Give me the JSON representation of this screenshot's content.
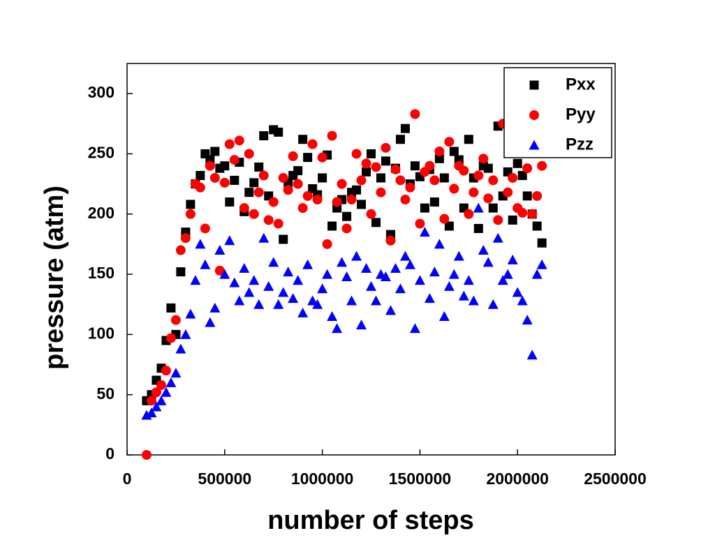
{
  "chart_data": {
    "type": "scatter",
    "xlabel": "number of steps",
    "ylabel": "pressure (atm)",
    "xlim": [
      0,
      2500000
    ],
    "ylim": [
      0,
      325
    ],
    "xticks": [
      0,
      500000,
      1000000,
      1500000,
      2000000,
      2500000
    ],
    "yticks": [
      0,
      50,
      100,
      150,
      200,
      250,
      300
    ],
    "legend": "upper right",
    "x": [
      100000,
      125000,
      150000,
      175000,
      200000,
      225000,
      250000,
      275000,
      300000,
      325000,
      350000,
      375000,
      400000,
      425000,
      450000,
      475000,
      500000,
      525000,
      550000,
      575000,
      600000,
      625000,
      650000,
      675000,
      700000,
      725000,
      750000,
      775000,
      800000,
      825000,
      850000,
      875000,
      900000,
      925000,
      950000,
      975000,
      1000000,
      1025000,
      1050000,
      1075000,
      1100000,
      1125000,
      1150000,
      1175000,
      1200000,
      1225000,
      1250000,
      1275000,
      1300000,
      1325000,
      1350000,
      1375000,
      1400000,
      1425000,
      1450000,
      1475000,
      1500000,
      1525000,
      1550000,
      1575000,
      1600000,
      1625000,
      1650000,
      1675000,
      1700000,
      1725000,
      1750000,
      1775000,
      1800000,
      1825000,
      1850000,
      1875000,
      1900000,
      1925000,
      1950000,
      1975000,
      2000000,
      2025000,
      2050000,
      2075000,
      2100000,
      2125000
    ],
    "series": [
      {
        "name": "Pxx",
        "color": "#000000",
        "marker": "square",
        "values": [
          45,
          50,
          62,
          72,
          95,
          122,
          100,
          152,
          185,
          208,
          225,
          232,
          250,
          245,
          252,
          238,
          240,
          210,
          228,
          243,
          202,
          218,
          226,
          239,
          265,
          215,
          270,
          268,
          179,
          226,
          232,
          236,
          262,
          247,
          221,
          216,
          230,
          249,
          190,
          205,
          212,
          198,
          218,
          220,
          208,
          235,
          250,
          193,
          230,
          244,
          183,
          238,
          262,
          271,
          225,
          240,
          231,
          205,
          237,
          210,
          246,
          230,
          190,
          252,
          245,
          205,
          262,
          230,
          188,
          240,
          238,
          205,
          273,
          215,
          235,
          195,
          242,
          232,
          215,
          200,
          190,
          176
        ]
      },
      {
        "name": "Pyy",
        "color": "#ff0000",
        "marker": "circle",
        "values": [
          0,
          45,
          52,
          58,
          70,
          97,
          112,
          170,
          180,
          200,
          225,
          222,
          188,
          240,
          230,
          153,
          226,
          258,
          245,
          261,
          205,
          250,
          200,
          218,
          232,
          195,
          210,
          192,
          230,
          220,
          248,
          225,
          205,
          215,
          258,
          212,
          247,
          175,
          265,
          210,
          225,
          188,
          212,
          250,
          228,
          242,
          200,
          239,
          218,
          255,
          178,
          237,
          228,
          212,
          222,
          283,
          192,
          235,
          240,
          228,
          252,
          196,
          260,
          221,
          240,
          236,
          200,
          218,
          232,
          246,
          213,
          228,
          195,
          275,
          218,
          230,
          205,
          201,
          238,
          200,
          215,
          240
        ]
      },
      {
        "name": "Pzz",
        "color": "#0000ff",
        "marker": "triangle",
        "values": [
          33,
          35,
          40,
          45,
          52,
          60,
          68,
          88,
          100,
          117,
          145,
          175,
          158,
          110,
          122,
          170,
          150,
          178,
          143,
          128,
          155,
          135,
          145,
          125,
          180,
          140,
          160,
          125,
          135,
          152,
          130,
          145,
          118,
          158,
          128,
          125,
          138,
          150,
          115,
          105,
          160,
          148,
          128,
          165,
          108,
          155,
          140,
          128,
          150,
          148,
          120,
          155,
          138,
          165,
          158,
          105,
          145,
          185,
          130,
          152,
          175,
          115,
          140,
          150,
          165,
          132,
          145,
          128,
          205,
          170,
          160,
          125,
          180,
          145,
          150,
          162,
          135,
          128,
          112,
          83,
          150,
          158
        ]
      }
    ]
  }
}
